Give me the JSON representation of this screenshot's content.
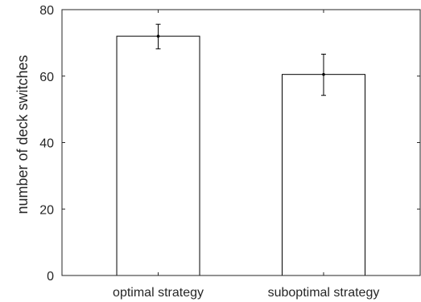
{
  "chart_data": {
    "type": "bar",
    "title": "",
    "xlabel": "",
    "ylabel": "number of deck switches",
    "categories": [
      "optimal strategy",
      "suboptimal strategy"
    ],
    "values": [
      72,
      60.5
    ],
    "error_low": [
      68.2,
      54.2
    ],
    "error_high": [
      75.6,
      66.6
    ],
    "ylim": [
      0,
      80
    ],
    "yticks": [
      "0",
      "20",
      "40",
      "60",
      "80"
    ],
    "grid": false,
    "legend": "none",
    "colors": {
      "bar_fill": "#ffffff",
      "bar_stroke": "#000000",
      "axis": "#262626",
      "error_bar": "#000000"
    }
  }
}
